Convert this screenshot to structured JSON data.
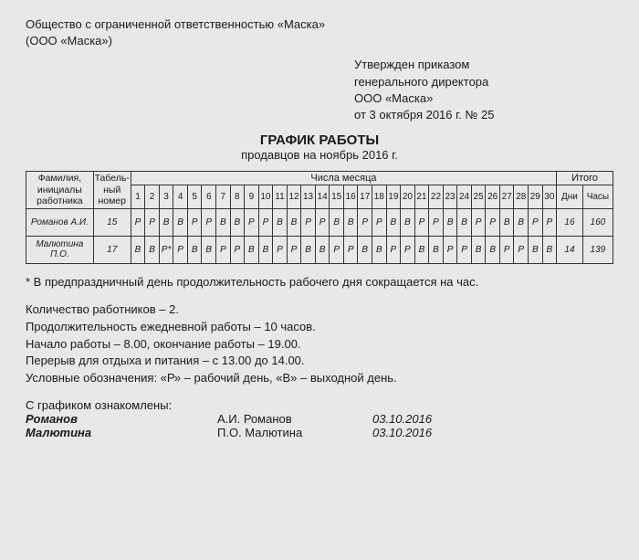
{
  "org": {
    "full": "Общество с ограниченной ответственностью «Маска»",
    "short": "(ООО «Маска»)"
  },
  "approval": {
    "l1": "Утвержден приказом",
    "l2": "генерального директора",
    "l3": "ООО «Маска»",
    "l4": "от 3 октября 2016 г. № 25"
  },
  "title": {
    "main": "ГРАФИК РАБОТЫ",
    "sub": "продавцов на ноябрь 2016 г."
  },
  "table": {
    "hdr_name": "Фамилия, инициалы работника",
    "hdr_tab": "Табель-ный номер",
    "hdr_days": "Числа месяца",
    "hdr_itogo": "Итого",
    "hdr_dni": "Дни",
    "hdr_chasy": "Часы",
    "day_labels": [
      "1",
      "2",
      "3",
      "4",
      "5",
      "6",
      "7",
      "8",
      "9",
      "10",
      "11",
      "12",
      "13",
      "14",
      "15",
      "16",
      "17",
      "18",
      "19",
      "20",
      "21",
      "22",
      "23",
      "24",
      "25",
      "26",
      "27",
      "28",
      "29",
      "30"
    ],
    "rows": [
      {
        "name": "Романов А.И.",
        "tab": "15",
        "days": [
          "Р",
          "Р",
          "В",
          "В",
          "Р",
          "Р",
          "В",
          "В",
          "Р",
          "Р",
          "В",
          "В",
          "Р",
          "Р",
          "В",
          "В",
          "Р",
          "Р",
          "В",
          "В",
          "Р",
          "Р",
          "В",
          "В",
          "Р",
          "Р",
          "В",
          "В",
          "Р",
          "Р"
        ],
        "dni": "16",
        "chasy": "160"
      },
      {
        "name": "Малютина П.О.",
        "tab": "17",
        "days": [
          "В",
          "В",
          "Р*",
          "Р",
          "В",
          "В",
          "Р",
          "Р",
          "В",
          "В",
          "Р",
          "Р",
          "В",
          "В",
          "Р",
          "Р",
          "В",
          "В",
          "Р",
          "Р",
          "В",
          "В",
          "Р",
          "Р",
          "В",
          "В",
          "Р",
          "Р",
          "В",
          "В"
        ],
        "dni": "14",
        "chasy": "139"
      }
    ]
  },
  "footnote": "* В предпраздничный день продолжительность рабочего дня сокращается на час.",
  "info": [
    "Количество работников – 2.",
    "Продолжительность ежедневной работы – 10 часов.",
    "Начало работы – 8.00, окончание работы – 19.00.",
    "Перерыв для отдыха и питания – с 13.00 до 14.00.",
    "Условные обозначения: «Р» – рабочий день, «В» – выходной день."
  ],
  "ack": {
    "title": "С графиком ознакомлены:",
    "rows": [
      {
        "sig": "Романов",
        "full": "А.И. Романов",
        "date": "03.10.2016"
      },
      {
        "sig": "Малютина",
        "full": "П.О. Малютина",
        "date": "03.10.2016"
      }
    ]
  }
}
